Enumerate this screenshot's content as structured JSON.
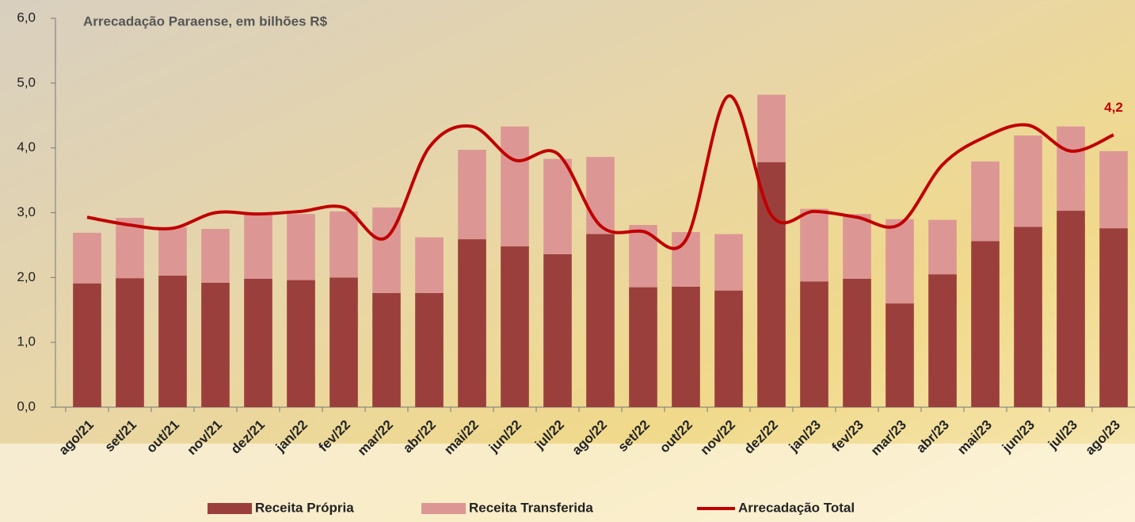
{
  "chart_data": {
    "type": "bar-line",
    "title": "Arrecadação Paraense, em bilhões R$",
    "categories": [
      "ago/21",
      "set/21",
      "out/21",
      "nov/21",
      "dez/21",
      "jan/22",
      "fev/22",
      "mar/22",
      "abr/22",
      "mai/22",
      "jun/22",
      "jul/22",
      "ago/22",
      "set/22",
      "out/22",
      "nov/22",
      "dez/22",
      "jan/23",
      "fev/23",
      "mar/23",
      "abr/23",
      "mai/23",
      "jun/23",
      "jul/23",
      "ago/23"
    ],
    "series": [
      {
        "name": "Receita Própria",
        "color": "#9b3f3c",
        "stack": true,
        "values": [
          1.91,
          1.99,
          2.03,
          1.92,
          1.98,
          1.96,
          2.0,
          1.76,
          1.76,
          2.59,
          2.48,
          2.36,
          2.67,
          1.85,
          1.86,
          1.8,
          3.78,
          1.94,
          1.98,
          1.6,
          2.05,
          2.56,
          2.78,
          3.03,
          2.76
        ]
      },
      {
        "name": "Receita Transferida",
        "color": "#dc9794",
        "stack": true,
        "values": [
          0.78,
          0.93,
          0.75,
          0.83,
          0.99,
          1.02,
          1.02,
          1.32,
          0.86,
          1.38,
          1.85,
          1.47,
          1.19,
          0.96,
          0.84,
          0.87,
          1.04,
          1.12,
          1.0,
          1.3,
          0.84,
          1.23,
          1.41,
          1.3,
          1.19
        ]
      },
      {
        "name": "Arrecadação Total",
        "color": "#c00000",
        "line": true,
        "values": [
          2.93,
          2.81,
          2.76,
          3.0,
          2.98,
          3.02,
          3.08,
          2.62,
          4.01,
          4.33,
          3.81,
          3.91,
          2.8,
          2.71,
          2.58,
          4.8,
          2.96,
          3.02,
          2.93,
          2.82,
          3.74,
          4.17,
          4.35,
          3.95,
          4.2
        ],
        "value_labels": [
          null,
          null,
          null,
          null,
          null,
          null,
          null,
          null,
          null,
          null,
          null,
          null,
          null,
          null,
          null,
          null,
          null,
          null,
          null,
          null,
          null,
          null,
          null,
          null,
          "4,2"
        ]
      }
    ],
    "ylim": [
      0,
      6
    ],
    "yticks": [
      {
        "value": 0,
        "label": "0,0"
      },
      {
        "value": 1,
        "label": "1,0"
      },
      {
        "value": 2,
        "label": "2,0"
      },
      {
        "value": 3,
        "label": "3,0"
      },
      {
        "value": 4,
        "label": "4,0"
      },
      {
        "value": 5,
        "label": "5,0"
      },
      {
        "value": 6,
        "label": "6,0"
      }
    ],
    "legend": "bottom"
  }
}
